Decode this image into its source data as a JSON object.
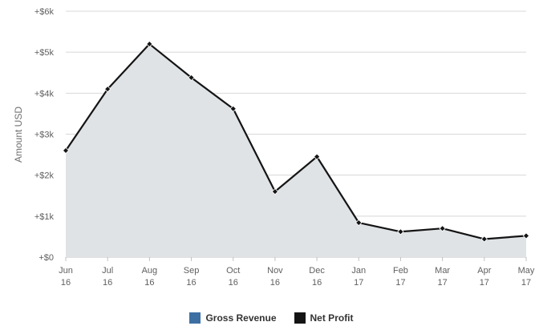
{
  "chart_data": {
    "type": "area",
    "title": "",
    "xlabel": "",
    "ylabel": "Amount USD",
    "categories": [
      [
        "Jun",
        "16"
      ],
      [
        "Jul",
        "16"
      ],
      [
        "Aug",
        "16"
      ],
      [
        "Sep",
        "16"
      ],
      [
        "Oct",
        "16"
      ],
      [
        "Nov",
        "16"
      ],
      [
        "Dec",
        "16"
      ],
      [
        "Jan",
        "17"
      ],
      [
        "Feb",
        "17"
      ],
      [
        "Mar",
        "17"
      ],
      [
        "Apr",
        "17"
      ],
      [
        "May",
        "17"
      ]
    ],
    "y_ticks": [
      "+$0",
      "+$1k",
      "+$2k",
      "+$3k",
      "+$4k",
      "+$5k",
      "+$6k"
    ],
    "ylim": [
      0,
      6000
    ],
    "grid": true,
    "legend_position": "bottom-center",
    "series": [
      {
        "name": "Gross Revenue",
        "color": "#3d6fa3",
        "values": [
          2600,
          4100,
          5200,
          4380,
          3620,
          1600,
          2450,
          840,
          620,
          700,
          440,
          520
        ]
      },
      {
        "name": "Net Profit",
        "color": "#141414",
        "fill": "#dfe3e6",
        "values": [
          2600,
          4100,
          5200,
          4380,
          3620,
          1600,
          2450,
          840,
          620,
          700,
          440,
          520
        ]
      }
    ]
  }
}
